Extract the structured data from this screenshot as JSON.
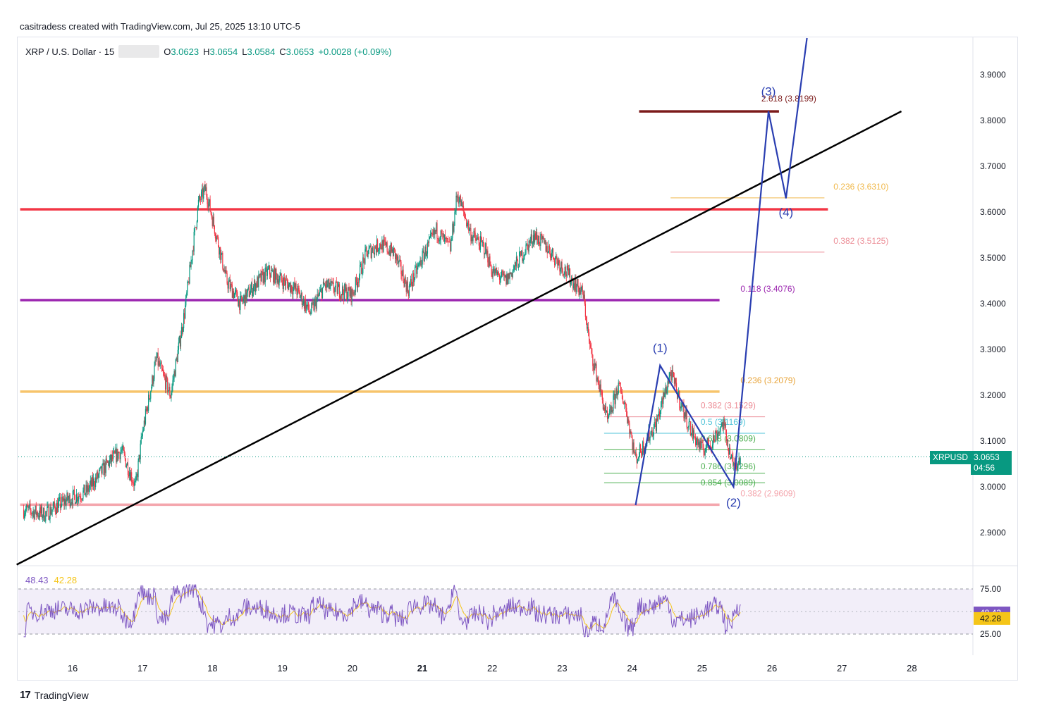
{
  "header": {
    "credit": "casitradess created with TradingView.com, Jul 25, 2025 13:10 UTC-5"
  },
  "legend": {
    "symbol": "XRP / U.S. Dollar · 15",
    "o_label": "O",
    "o_value": "3.0623",
    "h_label": "H",
    "h_value": "3.0654",
    "l_label": "L",
    "l_value": "3.0584",
    "c_label": "C",
    "c_value": "3.0653",
    "change": "+0.0028 (+0.09%)"
  },
  "price_tag": {
    "symbol": "XRPUSD",
    "price": "3.0653",
    "countdown": "04:56"
  },
  "rsi": {
    "value": "48.43",
    "ma": "42.28",
    "upper": "75.00",
    "lower": "25.00"
  },
  "brand": {
    "name": "TradingView"
  },
  "colors": {
    "up": "#089981",
    "down": "#f23645",
    "trend": "#000000",
    "wave": "#2a3eb1",
    "red_level": "#f23645",
    "purple_level": "#9c27b0",
    "orange_level": "#f7c46b",
    "pink_level": "#f4a6ad",
    "target": "#7b1a1a",
    "rsi_line": "#7e57c2",
    "rsi_ma": "#f5c518"
  },
  "chart_data": {
    "type": "candlestick",
    "x_axis": {
      "ticks": [
        "16",
        "17",
        "18",
        "19",
        "20",
        "21",
        "22",
        "23",
        "24",
        "25",
        "26",
        "27",
        "28"
      ]
    },
    "y_axis": {
      "range": [
        2.83,
        3.98
      ],
      "ticks": [
        "3.9000",
        "3.8000",
        "3.7000",
        "3.6000",
        "3.5000",
        "3.4000",
        "3.3000",
        "3.2000",
        "3.1000",
        "3.0000",
        "2.9000"
      ]
    },
    "price_path": [
      [
        15.3,
        2.95
      ],
      [
        15.6,
        2.94
      ],
      [
        15.9,
        2.97
      ],
      [
        16.2,
        2.99
      ],
      [
        16.5,
        3.05
      ],
      [
        16.7,
        3.08
      ],
      [
        16.9,
        3.0
      ],
      [
        17.0,
        3.12
      ],
      [
        17.2,
        3.28
      ],
      [
        17.4,
        3.2
      ],
      [
        17.6,
        3.38
      ],
      [
        17.8,
        3.62
      ],
      [
        17.9,
        3.65
      ],
      [
        18.1,
        3.52
      ],
      [
        18.2,
        3.45
      ],
      [
        18.4,
        3.4
      ],
      [
        18.6,
        3.44
      ],
      [
        18.8,
        3.47
      ],
      [
        19.0,
        3.45
      ],
      [
        19.2,
        3.43
      ],
      [
        19.4,
        3.38
      ],
      [
        19.6,
        3.44
      ],
      [
        19.8,
        3.43
      ],
      [
        20.0,
        3.42
      ],
      [
        20.2,
        3.51
      ],
      [
        20.4,
        3.53
      ],
      [
        20.6,
        3.51
      ],
      [
        20.8,
        3.43
      ],
      [
        21.0,
        3.5
      ],
      [
        21.2,
        3.56
      ],
      [
        21.4,
        3.52
      ],
      [
        21.5,
        3.64
      ],
      [
        21.7,
        3.55
      ],
      [
        21.9,
        3.52
      ],
      [
        22.0,
        3.47
      ],
      [
        22.2,
        3.45
      ],
      [
        22.4,
        3.5
      ],
      [
        22.6,
        3.55
      ],
      [
        22.8,
        3.52
      ],
      [
        23.0,
        3.48
      ],
      [
        23.3,
        3.42
      ],
      [
        23.4,
        3.3
      ],
      [
        23.5,
        3.24
      ],
      [
        23.65,
        3.14
      ],
      [
        23.8,
        3.22
      ],
      [
        23.9,
        3.18
      ],
      [
        24.05,
        3.06
      ],
      [
        24.2,
        3.1
      ],
      [
        24.35,
        3.14
      ],
      [
        24.55,
        3.25
      ],
      [
        24.7,
        3.18
      ],
      [
        24.85,
        3.12
      ],
      [
        25.0,
        3.08
      ],
      [
        25.15,
        3.1
      ],
      [
        25.3,
        3.14
      ],
      [
        25.45,
        3.04
      ],
      [
        25.55,
        3.07
      ]
    ],
    "horizontal_levels": [
      {
        "price": 3.606,
        "color": "red",
        "from": 15.25,
        "to": 26.8
      },
      {
        "price": 3.4076,
        "color": "purple",
        "from": 15.25,
        "to": 25.25,
        "label": "0.118 (3.4076)"
      },
      {
        "price": 3.2079,
        "color": "orange",
        "from": 15.25,
        "to": 25.25,
        "label": "0.236 (3.2079)"
      },
      {
        "price": 2.9609,
        "color": "pink",
        "from": 15.25,
        "to": 25.25,
        "label": "0.382 (2.9609)"
      },
      {
        "price": 3.8199,
        "color": "target",
        "from": 24.1,
        "to": 26.1,
        "label": "2.618 (3.8199)"
      }
    ],
    "fib_levels": [
      {
        "label": "0.236 (3.6310)",
        "price": 3.631,
        "color": "#f0b84a"
      },
      {
        "label": "0.382 (3.5125)",
        "price": 3.5125,
        "color": "#ec8d96"
      },
      {
        "label": "0.382 (3.1529)",
        "price": 3.1529,
        "color": "#ec8d96"
      },
      {
        "label": "0.5 (3.1169)",
        "price": 3.1169,
        "color": "#4fc3d8"
      },
      {
        "label": "0.618 (3.0809)",
        "price": 3.0809,
        "color": "#4caf50"
      },
      {
        "label": "0.786 (3.0296)",
        "price": 3.0296,
        "color": "#4caf50"
      },
      {
        "label": "0.854 (3.0089)",
        "price": 3.0089,
        "color": "#4caf50"
      }
    ],
    "trendline": [
      [
        15.2,
        2.83
      ],
      [
        27.85,
        3.82
      ]
    ],
    "wave_path": [
      [
        24.05,
        2.96
      ],
      [
        24.4,
        3.265
      ],
      [
        25.45,
        3.0
      ],
      [
        25.95,
        3.82
      ],
      [
        26.2,
        3.63
      ],
      [
        26.5,
        3.98
      ]
    ],
    "wave_labels": [
      {
        "text": "(1)",
        "x": 24.4,
        "y": 3.295
      },
      {
        "text": "(2)",
        "x": 25.45,
        "y": 2.957
      },
      {
        "text": "(3)",
        "x": 25.95,
        "y": 3.855
      },
      {
        "text": "(4)",
        "x": 26.2,
        "y": 3.591
      }
    ],
    "rsi": {
      "upper_band": 75,
      "lower_band": 25,
      "last": 48.43,
      "ma": 42.28
    }
  }
}
